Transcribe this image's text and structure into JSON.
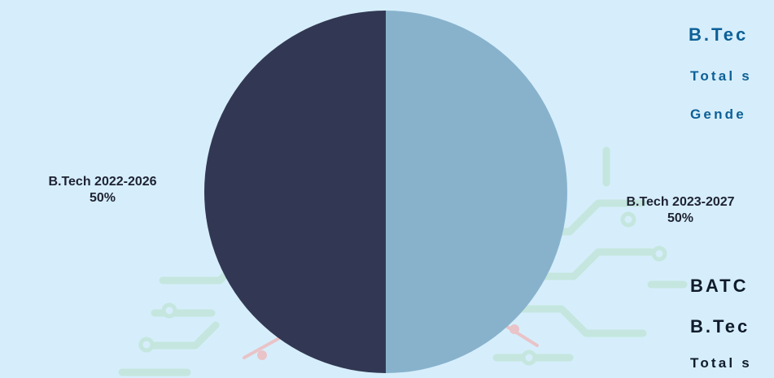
{
  "chart_data": {
    "type": "pie",
    "title": "",
    "slices": [
      {
        "label": "B.Tech 2023-2027",
        "value": 50,
        "display": "50%",
        "color": "#88b2cc"
      },
      {
        "label": "B.Tech 2022-2026",
        "value": 50,
        "display": "50%",
        "color": "#323853"
      }
    ],
    "legend": "none"
  },
  "side_panel": {
    "top": {
      "heading": "B.Tec",
      "line1": "Total s",
      "line2": "Gende"
    },
    "bottom": {
      "heading": "BATC",
      "subheading": "B.Tec",
      "line1": "Total s"
    }
  },
  "colors": {
    "background": "#d6eefb",
    "circuit": "#bfe3dd",
    "accent_blue": "#0d6097",
    "text_dark": "#0f1b2b"
  }
}
